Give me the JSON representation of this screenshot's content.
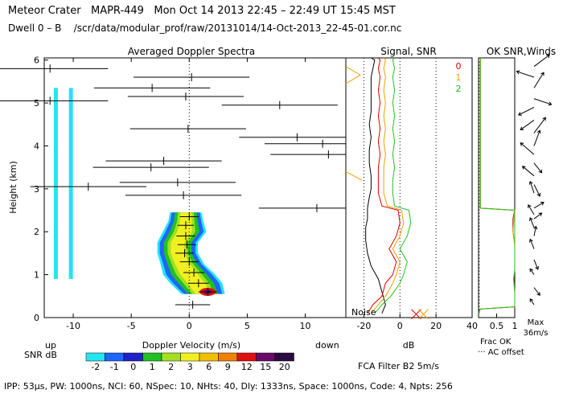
{
  "header": {
    "site": "Meteor Crater",
    "instrument": "MAPR-449",
    "datetime": "Mon Oct 14 2013 22:45 – 22:49 UT 15:45 MST",
    "dwell": "Dwell  0 – B",
    "path": "/scr/data/modular_prof/raw/20131014/14-Oct-2013_22-45-01.cor.nc"
  },
  "footer": {
    "params": "IPP: 53μs, PW: 1000ns, NCI: 60, NSpec: 10, NHts: 40, Dly: 1333ns, Space: 1000ns, Code: 4, Npts: 256"
  },
  "colors": {
    "cyan": "#22e5f2",
    "green_line": "#22c022",
    "red_line": "#e00000",
    "orange_line": "#f0a000",
    "black": "#000000"
  },
  "snr_scale": {
    "label": "SNR dB",
    "values": [
      "-2",
      "-1",
      "0",
      "1",
      "2",
      "3",
      "6",
      "9",
      "12",
      "15",
      "20"
    ],
    "colors": [
      "#22e5f2",
      "#1e66ff",
      "#2020c8",
      "#22c022",
      "#a2e020",
      "#f0f020",
      "#f0c000",
      "#f08000",
      "#e01010",
      "#6a0a6a",
      "#2a0a40"
    ]
  },
  "chart_data": [
    {
      "type": "heatmap",
      "title": "Averaged Doppler Spectra",
      "xlabel": "Doppler Velocity (m/s)",
      "ylabel": "Height (km)",
      "xlim": [
        -12.5,
        13.5
      ],
      "ylim": [
        0,
        6.05
      ],
      "xticks": [
        "-10",
        "-5",
        "0",
        "5",
        "10"
      ],
      "yticks": [
        "0",
        "1",
        "2",
        "3",
        "4",
        "5",
        "6"
      ],
      "left_note": "up",
      "right_note": "down",
      "spectral_core": [
        {
          "height": 0.55,
          "center": 1.2,
          "halfwidth": 1.5
        },
        {
          "height": 0.8,
          "center": 0.6,
          "halfwidth": 1.8
        },
        {
          "height": 1.0,
          "center": 0.0,
          "halfwidth": 1.8
        },
        {
          "height": 1.25,
          "center": -0.6,
          "halfwidth": 1.5
        },
        {
          "height": 1.5,
          "center": -1.0,
          "halfwidth": 1.4
        },
        {
          "height": 1.75,
          "center": -1.0,
          "halfwidth": 1.4
        },
        {
          "height": 2.0,
          "center": -0.4,
          "halfwidth": 1.5
        },
        {
          "height": 2.25,
          "center": -0.3,
          "halfwidth": 1.2
        },
        {
          "height": 2.45,
          "center": -0.3,
          "halfwidth": 1.1
        }
      ],
      "moments": [
        {
          "height": 0.3,
          "mean": 0.3,
          "halfwidth": 1.5
        },
        {
          "height": 0.6,
          "mean": 1.6,
          "halfwidth": 0.8
        },
        {
          "height": 0.8,
          "mean": 0.8,
          "halfwidth": 0.9
        },
        {
          "height": 1.05,
          "mean": 0.4,
          "halfwidth": 0.9
        },
        {
          "height": 1.3,
          "mean": 0.0,
          "halfwidth": 0.8
        },
        {
          "height": 1.5,
          "mean": -0.4,
          "halfwidth": 0.8
        },
        {
          "height": 1.7,
          "mean": -0.2,
          "halfwidth": 0.8
        },
        {
          "height": 1.9,
          "mean": -0.3,
          "halfwidth": 0.8
        },
        {
          "height": 2.15,
          "mean": -0.3,
          "halfwidth": 0.7
        },
        {
          "height": 2.35,
          "mean": 0.0,
          "halfwidth": 0.8
        },
        {
          "height": 2.55,
          "mean": 11.0,
          "halfwidth": 5.0
        },
        {
          "height": 2.85,
          "mean": -0.5,
          "halfwidth": 5.0
        },
        {
          "height": 3.05,
          "mean": -8.7,
          "halfwidth": 5.0
        },
        {
          "height": 3.15,
          "mean": -1.0,
          "halfwidth": 5.0
        },
        {
          "height": 3.5,
          "mean": -3.3,
          "halfwidth": 5.0
        },
        {
          "height": 3.65,
          "mean": -2.2,
          "halfwidth": 5.0
        },
        {
          "height": 3.8,
          "mean": 12.0,
          "halfwidth": 5.0
        },
        {
          "height": 4.05,
          "mean": 11.5,
          "halfwidth": 5.0
        },
        {
          "height": 4.2,
          "mean": 9.3,
          "halfwidth": 5.0
        },
        {
          "height": 4.4,
          "mean": -0.1,
          "halfwidth": 5.0
        },
        {
          "height": 4.95,
          "mean": 7.8,
          "halfwidth": 5.0
        },
        {
          "height": 5.05,
          "mean": -12.0,
          "halfwidth": 5.0
        },
        {
          "height": 5.15,
          "mean": -0.3,
          "halfwidth": 5.0
        },
        {
          "height": 5.35,
          "mean": -3.2,
          "halfwidth": 5.0
        },
        {
          "height": 5.6,
          "mean": 0.2,
          "halfwidth": 5.0
        },
        {
          "height": 5.8,
          "mean": -12.0,
          "halfwidth": 5.0
        }
      ],
      "clutter_velocities": [
        -11.5,
        -10.2
      ]
    },
    {
      "type": "line",
      "title": "Signal, SNR",
      "xlabel": "dB",
      "xlim": [
        -30,
        40
      ],
      "ylim": [
        0,
        6.05
      ],
      "xticks": [
        "-20",
        "0",
        "20",
        "40"
      ],
      "dotted_x": [
        -20,
        0,
        20
      ],
      "noise_label": "Noise",
      "series": [
        {
          "name": "signal",
          "color": "#000000",
          "x": [
            -10,
            -8,
            -10,
            -12,
            -16,
            -18,
            -19,
            -19,
            -18,
            -18,
            -17,
            -16,
            -16,
            -17,
            -17,
            -16,
            -17,
            -16,
            -16,
            -16,
            -16,
            -15,
            -14,
            -16
          ],
          "y": [
            0.1,
            0.3,
            0.6,
            0.9,
            1.2,
            1.5,
            1.8,
            2.1,
            2.3,
            2.55,
            2.8,
            3.0,
            3.3,
            3.6,
            3.9,
            4.2,
            4.5,
            4.8,
            5.1,
            5.4,
            5.6,
            5.8,
            6.0,
            6.05
          ]
        },
        {
          "name": "snr-0",
          "color": "#e00000",
          "x": [
            -18,
            -15,
            -10,
            -8,
            -4,
            -2,
            -6,
            -2,
            0,
            -1,
            -10,
            -12,
            -12,
            -12,
            -11,
            -12,
            -11,
            -12,
            -11,
            -12,
            -11,
            -12,
            -11,
            -12
          ],
          "y": [
            0.1,
            0.3,
            0.5,
            0.8,
            1.0,
            1.3,
            1.6,
            1.9,
            2.2,
            2.5,
            2.6,
            2.9,
            3.2,
            3.5,
            3.8,
            4.1,
            4.4,
            4.7,
            5.0,
            5.3,
            5.6,
            5.8,
            6.0,
            6.05
          ]
        },
        {
          "name": "snr-1",
          "color": "#f0a000",
          "x": [
            -16,
            -12,
            -8,
            -4,
            -2,
            0,
            -4,
            0,
            2,
            1,
            -7,
            -9,
            -9,
            -9,
            -8,
            -9,
            -8,
            -9,
            -8,
            -9,
            -8,
            -9,
            -8,
            -9
          ],
          "y": [
            0.1,
            0.3,
            0.5,
            0.8,
            1.0,
            1.3,
            1.6,
            1.9,
            2.2,
            2.5,
            2.6,
            2.9,
            3.2,
            3.5,
            3.8,
            4.1,
            4.4,
            4.7,
            5.0,
            5.3,
            5.6,
            5.8,
            6.0,
            6.05
          ]
        },
        {
          "name": "snr-2",
          "color": "#22c022",
          "x": [
            -14,
            -10,
            -5,
            0,
            2,
            4,
            0,
            4,
            6,
            5,
            -3,
            -4,
            -4,
            -3,
            -4,
            -3,
            -4,
            -3,
            -4,
            -3,
            -4,
            -3,
            -4,
            -3
          ],
          "y": [
            0.1,
            0.3,
            0.5,
            0.8,
            1.0,
            1.3,
            1.6,
            1.9,
            2.2,
            2.5,
            2.6,
            2.9,
            3.2,
            3.5,
            3.8,
            4.1,
            4.4,
            4.7,
            5.0,
            5.3,
            5.6,
            5.8,
            6.0,
            6.05
          ]
        },
        {
          "name": "noise-marks",
          "color": "#f0a000",
          "x": [
            -30,
            -22,
            -30
          ],
          "y": [
            5.85,
            5.65,
            5.45
          ]
        },
        {
          "name": "noise-marks-2",
          "color": "#f0a000",
          "x": [
            -30,
            -21
          ],
          "y": [
            3.4,
            3.2
          ]
        }
      ]
    },
    {
      "type": "line",
      "title": "OK SNR,Winds",
      "xlim": [
        0,
        1
      ],
      "ylim": [
        0,
        6.05
      ],
      "xticks": [
        "0.5",
        "1"
      ],
      "legend": [
        "0",
        "1",
        "2"
      ],
      "frac_ok_label": "Frac OK",
      "ac_offset_label": "··· AC offset",
      "series": [
        {
          "name": "frac-ok-0",
          "color": "#e00000",
          "x": [
            0,
            0.05,
            1,
            1,
            0.97,
            1,
            1,
            0.95,
            0.95,
            1,
            0.05,
            0.05
          ],
          "y": [
            0.1,
            0.2,
            0.25,
            0.6,
            0.9,
            1.1,
            1.7,
            2.0,
            2.3,
            2.5,
            2.55,
            6.05
          ]
        },
        {
          "name": "frac-ok-1",
          "color": "#f0a000",
          "x": [
            0,
            0.05,
            1,
            1,
            0.97,
            1,
            1,
            0.95,
            1,
            0.05,
            0.05
          ],
          "y": [
            0.1,
            0.2,
            0.25,
            0.6,
            0.9,
            1.1,
            1.7,
            2.0,
            2.5,
            2.55,
            6.05
          ]
        },
        {
          "name": "frac-ok-2",
          "color": "#22c022",
          "x": [
            0,
            0.05,
            1,
            1,
            0.97,
            1,
            1,
            1,
            0.05,
            0.05
          ],
          "y": [
            0.1,
            0.2,
            0.25,
            0.6,
            0.9,
            1.1,
            1.7,
            2.5,
            2.55,
            6.05
          ]
        },
        {
          "name": "ac-offset",
          "color": "#000000",
          "x": [
            0.02,
            0.02,
            0.02,
            0.02,
            0.02,
            0.02,
            0.02
          ],
          "y": [
            0.1,
            1.0,
            2.0,
            3.0,
            4.0,
            5.0,
            6.0
          ]
        }
      ]
    }
  ],
  "winds": {
    "max_label": "Max",
    "max_value": "36m/s",
    "vectors": [
      {
        "height": 0.3,
        "u": -0.2,
        "v": 0.3
      },
      {
        "height": 0.7,
        "u": 0.3,
        "v": -0.4
      },
      {
        "height": 1.0,
        "u": -0.2,
        "v": 0.3
      },
      {
        "height": 1.35,
        "u": 0.2,
        "v": -0.5
      },
      {
        "height": 1.6,
        "u": -0.2,
        "v": 0.5
      },
      {
        "height": 1.9,
        "u": 0.1,
        "v": 0.5
      },
      {
        "height": 2.1,
        "u": -0.2,
        "v": 0.5
      },
      {
        "height": 2.3,
        "u": 0.4,
        "v": 0.3
      },
      {
        "height": 2.4,
        "u": -0.3,
        "v": 0.5
      },
      {
        "height": 2.55,
        "u": 0.5,
        "v": 0.3
      },
      {
        "height": 2.9,
        "u": -0.2,
        "v": 0.6
      },
      {
        "height": 3.1,
        "u": 0.3,
        "v": -0.6
      },
      {
        "height": 3.3,
        "u": -0.6,
        "v": 0.5
      },
      {
        "height": 3.6,
        "u": 0.4,
        "v": -0.5
      },
      {
        "height": 3.8,
        "u": -0.7,
        "v": 0.6
      },
      {
        "height": 4.0,
        "u": 0.3,
        "v": 0.8
      },
      {
        "height": 4.3,
        "u": 0.6,
        "v": 0.8
      },
      {
        "height": 4.6,
        "u": -0.7,
        "v": -0.5
      },
      {
        "height": 4.9,
        "u": -0.8,
        "v": -0.4
      },
      {
        "height": 5.1,
        "u": 0.9,
        "v": -0.3
      },
      {
        "height": 5.35,
        "u": 0.5,
        "v": 0.8
      },
      {
        "height": 5.6,
        "u": -0.9,
        "v": 0.3
      },
      {
        "height": 5.85,
        "u": 0.8,
        "v": 0.6
      }
    ]
  },
  "filter_text": "FCA Filter B2  5m/s"
}
